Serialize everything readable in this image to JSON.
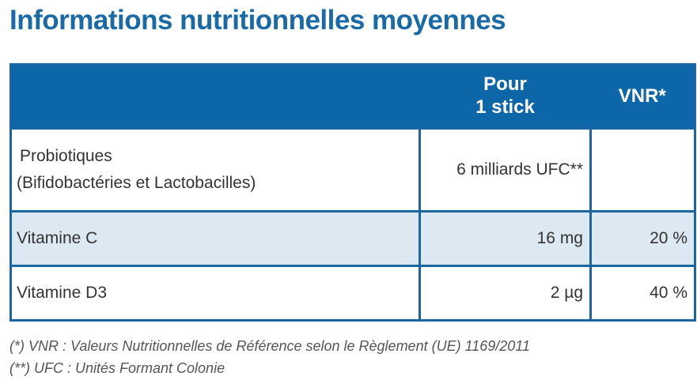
{
  "title": "Informations nutritionnelles moyennes",
  "table": {
    "headers": {
      "col1": "",
      "col2_line1": "Pour",
      "col2_line2": "1 stick",
      "col3": "VNR*"
    },
    "rows": [
      {
        "name_line1": "Probiotiques",
        "name_line2": "(Bifidobactéries et Lactobacilles)",
        "amount": "6 milliards UFC**",
        "vnr": ""
      },
      {
        "name_line1": "Vitamine C",
        "amount": "16 mg",
        "vnr": "20 %"
      },
      {
        "name_line1": "Vitamine D3",
        "amount": "2 µg",
        "vnr": "40 %"
      }
    ]
  },
  "footnotes": [
    "(*) VNR : Valeurs Nutritionnelles de Référence selon le Règlement (UE) 1169/2011",
    "(**) UFC : Unités Formant Colonie"
  ],
  "colors": {
    "title": "#1a6aa8",
    "header_bg": "#0d66a8",
    "border": "#1a66a3",
    "alt_row_bg": "#dce8f2"
  }
}
